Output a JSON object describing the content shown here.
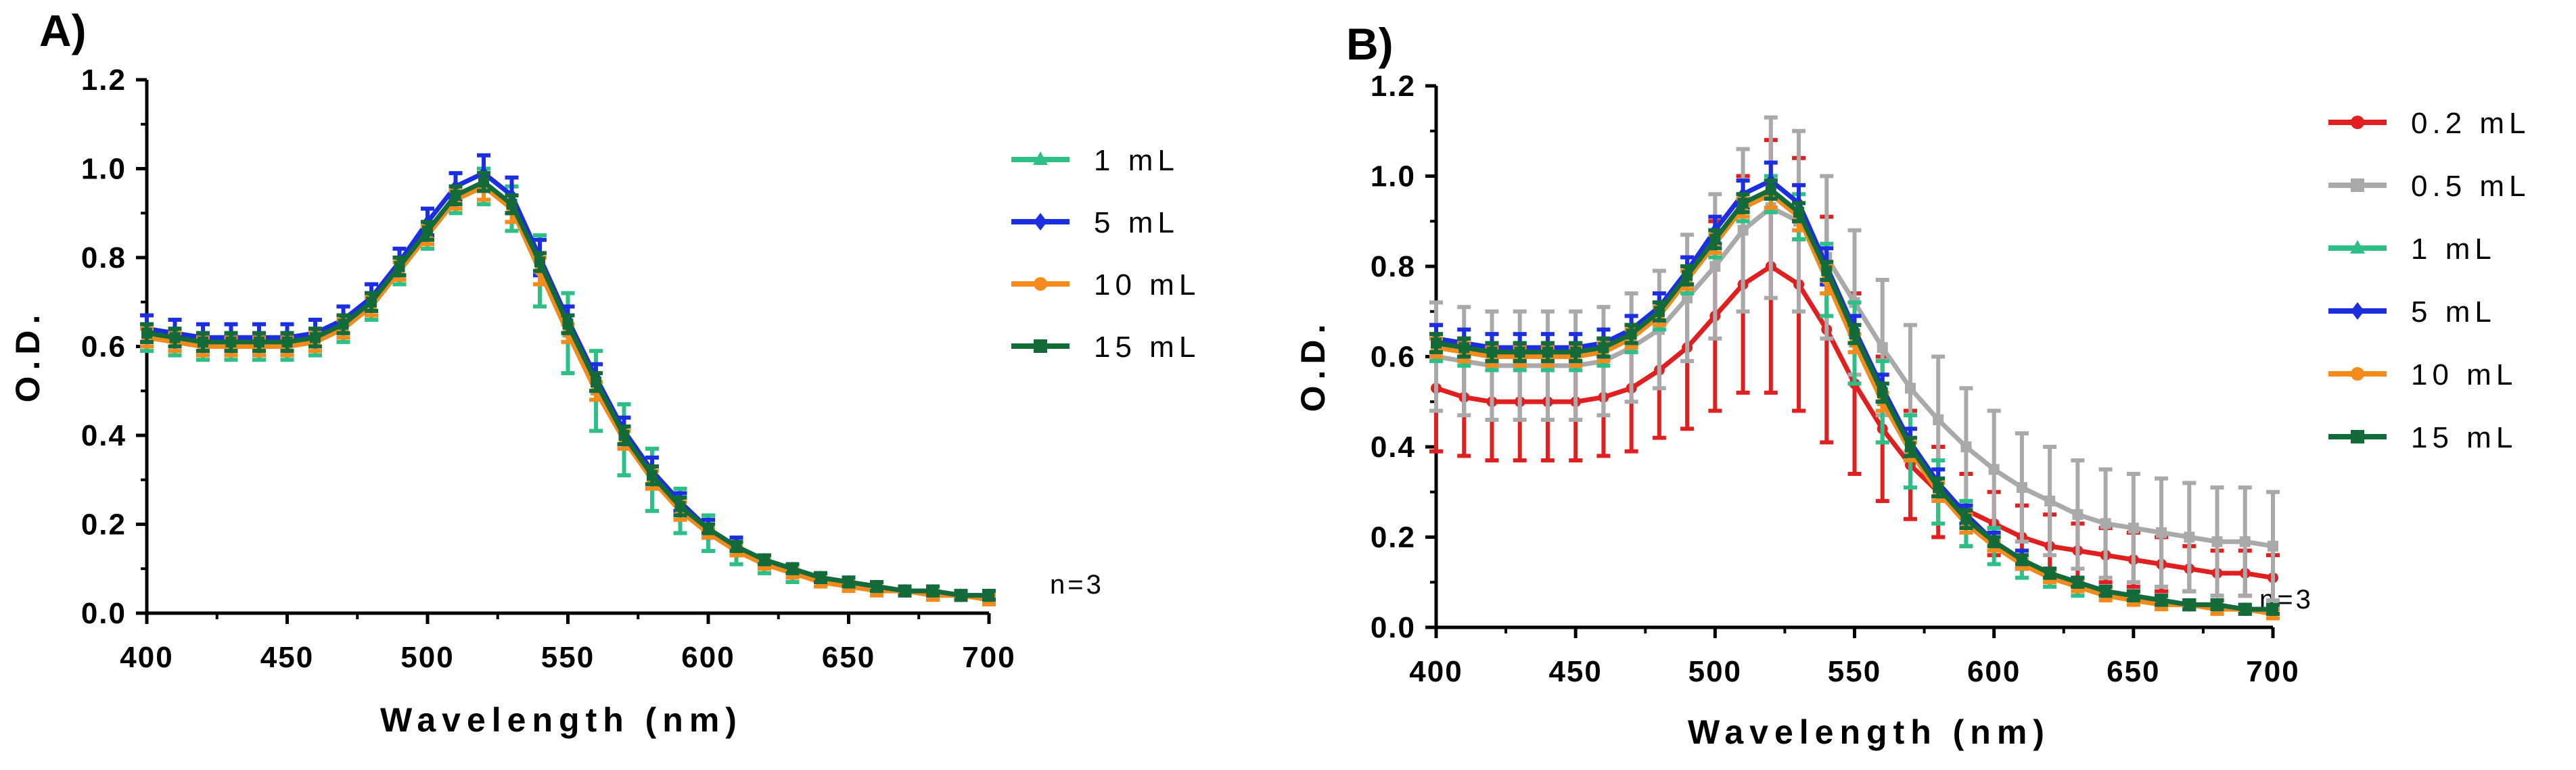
{
  "panels": [
    {
      "label": "A)",
      "note": "n=3",
      "chart_data": {
        "type": "line",
        "xlabel": "Wavelength (nm)",
        "ylabel": "O.D.",
        "xlim": [
          400,
          700
        ],
        "ylim": [
          0.0,
          1.2
        ],
        "xticks": [
          400,
          450,
          500,
          550,
          600,
          650,
          700
        ],
        "yticks": [
          0.0,
          0.2,
          0.4,
          0.6,
          0.8,
          1.0,
          1.2
        ],
        "ytick_labels": [
          "0.0",
          "0.2",
          "0.4",
          "0.6",
          "0.8",
          "1.0",
          "1.2"
        ],
        "legend_position": "right",
        "x": [
          400,
          410,
          420,
          430,
          440,
          450,
          460,
          470,
          480,
          490,
          500,
          510,
          520,
          530,
          540,
          550,
          560,
          570,
          580,
          590,
          600,
          610,
          620,
          630,
          640,
          650,
          660,
          670,
          680,
          690,
          700
        ],
        "series": [
          {
            "name": "1 mL",
            "color": "#2dbf86",
            "marker": "triangle",
            "values": [
              0.62,
              0.61,
              0.6,
              0.6,
              0.6,
              0.6,
              0.61,
              0.64,
              0.69,
              0.77,
              0.85,
              0.93,
              0.96,
              0.91,
              0.77,
              0.63,
              0.5,
              0.39,
              0.3,
              0.23,
              0.18,
              0.14,
              0.11,
              0.09,
              0.08,
              0.07,
              0.06,
              0.05,
              0.05,
              0.04,
              0.04
            ],
            "errors": [
              0.03,
              0.03,
              0.03,
              0.03,
              0.03,
              0.03,
              0.03,
              0.03,
              0.03,
              0.03,
              0.03,
              0.03,
              0.04,
              0.05,
              0.08,
              0.09,
              0.09,
              0.08,
              0.07,
              0.05,
              0.04,
              0.03,
              0.02,
              0.02,
              0.01,
              0.01,
              0.01,
              0.01,
              0.01,
              0.01,
              0.01
            ]
          },
          {
            "name": "5 mL",
            "color": "#1c2fe0",
            "marker": "diamond",
            "values": [
              0.64,
              0.63,
              0.62,
              0.62,
              0.62,
              0.62,
              0.63,
              0.66,
              0.71,
              0.79,
              0.88,
              0.96,
              0.99,
              0.94,
              0.8,
              0.66,
              0.53,
              0.41,
              0.32,
              0.25,
              0.19,
              0.15,
              0.12,
              0.1,
              0.08,
              0.07,
              0.06,
              0.05,
              0.05,
              0.04,
              0.04
            ],
            "errors": [
              0.03,
              0.03,
              0.03,
              0.03,
              0.03,
              0.03,
              0.03,
              0.03,
              0.03,
              0.03,
              0.03,
              0.03,
              0.04,
              0.04,
              0.04,
              0.03,
              0.03,
              0.03,
              0.03,
              0.02,
              0.02,
              0.02,
              0.01,
              0.01,
              0.01,
              0.01,
              0.01,
              0.01,
              0.01,
              0.01,
              0.01
            ]
          },
          {
            "name": "10 mL",
            "color": "#f28a1c",
            "marker": "circle",
            "values": [
              0.62,
              0.61,
              0.6,
              0.6,
              0.6,
              0.6,
              0.61,
              0.64,
              0.69,
              0.77,
              0.85,
              0.93,
              0.96,
              0.91,
              0.77,
              0.63,
              0.5,
              0.39,
              0.3,
              0.23,
              0.18,
              0.14,
              0.11,
              0.09,
              0.07,
              0.06,
              0.05,
              0.05,
              0.04,
              0.04,
              0.03
            ],
            "errors": [
              0.02,
              0.02,
              0.02,
              0.02,
              0.02,
              0.02,
              0.02,
              0.02,
              0.02,
              0.02,
              0.02,
              0.02,
              0.03,
              0.03,
              0.03,
              0.02,
              0.02,
              0.02,
              0.02,
              0.02,
              0.01,
              0.01,
              0.01,
              0.01,
              0.01,
              0.01,
              0.01,
              0.01,
              0.01,
              0.01,
              0.01
            ]
          },
          {
            "name": "15 mL",
            "color": "#146b3a",
            "marker": "square",
            "values": [
              0.63,
              0.62,
              0.61,
              0.61,
              0.61,
              0.61,
              0.62,
              0.65,
              0.7,
              0.78,
              0.86,
              0.94,
              0.97,
              0.92,
              0.79,
              0.65,
              0.52,
              0.4,
              0.31,
              0.24,
              0.19,
              0.15,
              0.12,
              0.1,
              0.08,
              0.07,
              0.06,
              0.05,
              0.05,
              0.04,
              0.04
            ],
            "errors": [
              0.02,
              0.02,
              0.02,
              0.02,
              0.02,
              0.02,
              0.02,
              0.02,
              0.02,
              0.02,
              0.02,
              0.02,
              0.02,
              0.02,
              0.02,
              0.02,
              0.02,
              0.02,
              0.02,
              0.02,
              0.01,
              0.01,
              0.01,
              0.01,
              0.01,
              0.01,
              0.01,
              0.01,
              0.01,
              0.01,
              0.01
            ]
          }
        ]
      }
    },
    {
      "label": "B)",
      "note": "n=3",
      "chart_data": {
        "type": "line",
        "xlabel": "Wavelength (nm)",
        "ylabel": "O.D.",
        "xlim": [
          400,
          700
        ],
        "ylim": [
          0.0,
          1.2
        ],
        "xticks": [
          400,
          450,
          500,
          550,
          600,
          650,
          700
        ],
        "yticks": [
          0.0,
          0.2,
          0.4,
          0.6,
          0.8,
          1.0,
          1.2
        ],
        "ytick_labels": [
          "0.0",
          "0.2",
          "0.4",
          "0.6",
          "0.8",
          "1.0",
          "1.2"
        ],
        "legend_position": "right",
        "x": [
          400,
          410,
          420,
          430,
          440,
          450,
          460,
          470,
          480,
          490,
          500,
          510,
          520,
          530,
          540,
          550,
          560,
          570,
          580,
          590,
          600,
          610,
          620,
          630,
          640,
          650,
          660,
          670,
          680,
          690,
          700
        ],
        "series": [
          {
            "name": "0.2 mL",
            "color": "#e02020",
            "marker": "circle",
            "values": [
              0.53,
              0.51,
              0.5,
              0.5,
              0.5,
              0.5,
              0.51,
              0.53,
              0.57,
              0.62,
              0.69,
              0.76,
              0.8,
              0.76,
              0.66,
              0.54,
              0.44,
              0.36,
              0.3,
              0.26,
              0.23,
              0.2,
              0.18,
              0.17,
              0.16,
              0.15,
              0.14,
              0.13,
              0.12,
              0.12,
              0.11
            ],
            "errors": [
              0.14,
              0.13,
              0.13,
              0.13,
              0.13,
              0.13,
              0.13,
              0.14,
              0.15,
              0.18,
              0.21,
              0.24,
              0.28,
              0.28,
              0.25,
              0.2,
              0.16,
              0.12,
              0.1,
              0.08,
              0.07,
              0.07,
              0.07,
              0.06,
              0.06,
              0.06,
              0.06,
              0.05,
              0.05,
              0.05,
              0.05
            ]
          },
          {
            "name": "0.5 mL",
            "color": "#a9a9a9",
            "marker": "square",
            "values": [
              0.6,
              0.59,
              0.58,
              0.58,
              0.58,
              0.58,
              0.59,
              0.62,
              0.66,
              0.73,
              0.8,
              0.88,
              0.93,
              0.9,
              0.82,
              0.72,
              0.62,
              0.53,
              0.46,
              0.4,
              0.35,
              0.31,
              0.28,
              0.25,
              0.23,
              0.22,
              0.21,
              0.2,
              0.19,
              0.19,
              0.18
            ],
            "errors": [
              0.12,
              0.12,
              0.12,
              0.12,
              0.12,
              0.12,
              0.12,
              0.12,
              0.13,
              0.14,
              0.16,
              0.18,
              0.2,
              0.2,
              0.18,
              0.16,
              0.15,
              0.14,
              0.14,
              0.13,
              0.13,
              0.12,
              0.12,
              0.12,
              0.12,
              0.12,
              0.12,
              0.12,
              0.12,
              0.12,
              0.12
            ]
          },
          {
            "name": "1 mL",
            "color": "#2dbf86",
            "marker": "triangle",
            "values": [
              0.62,
              0.61,
              0.6,
              0.6,
              0.6,
              0.6,
              0.61,
              0.64,
              0.69,
              0.77,
              0.85,
              0.93,
              0.96,
              0.91,
              0.77,
              0.63,
              0.5,
              0.39,
              0.3,
              0.23,
              0.18,
              0.14,
              0.11,
              0.09,
              0.08,
              0.07,
              0.06,
              0.05,
              0.05,
              0.04,
              0.04
            ],
            "errors": [
              0.03,
              0.03,
              0.03,
              0.03,
              0.03,
              0.03,
              0.03,
              0.03,
              0.03,
              0.03,
              0.03,
              0.03,
              0.04,
              0.05,
              0.08,
              0.09,
              0.09,
              0.08,
              0.07,
              0.05,
              0.04,
              0.03,
              0.02,
              0.02,
              0.01,
              0.01,
              0.01,
              0.01,
              0.01,
              0.01,
              0.01
            ]
          },
          {
            "name": "5 mL",
            "color": "#1c2fe0",
            "marker": "diamond",
            "values": [
              0.64,
              0.63,
              0.62,
              0.62,
              0.62,
              0.62,
              0.63,
              0.66,
              0.71,
              0.79,
              0.88,
              0.96,
              0.99,
              0.94,
              0.8,
              0.66,
              0.53,
              0.41,
              0.32,
              0.25,
              0.19,
              0.15,
              0.12,
              0.1,
              0.08,
              0.07,
              0.06,
              0.05,
              0.05,
              0.04,
              0.04
            ],
            "errors": [
              0.03,
              0.03,
              0.03,
              0.03,
              0.03,
              0.03,
              0.03,
              0.03,
              0.03,
              0.03,
              0.03,
              0.03,
              0.04,
              0.04,
              0.04,
              0.03,
              0.03,
              0.03,
              0.03,
              0.02,
              0.02,
              0.02,
              0.01,
              0.01,
              0.01,
              0.01,
              0.01,
              0.01,
              0.01,
              0.01,
              0.01
            ]
          },
          {
            "name": "10 mL",
            "color": "#f28a1c",
            "marker": "circle",
            "values": [
              0.62,
              0.61,
              0.6,
              0.6,
              0.6,
              0.6,
              0.61,
              0.64,
              0.69,
              0.77,
              0.85,
              0.93,
              0.96,
              0.91,
              0.77,
              0.63,
              0.5,
              0.39,
              0.3,
              0.23,
              0.18,
              0.14,
              0.11,
              0.09,
              0.07,
              0.06,
              0.05,
              0.05,
              0.04,
              0.04,
              0.03
            ],
            "errors": [
              0.02,
              0.02,
              0.02,
              0.02,
              0.02,
              0.02,
              0.02,
              0.02,
              0.02,
              0.02,
              0.02,
              0.02,
              0.03,
              0.03,
              0.03,
              0.02,
              0.02,
              0.02,
              0.02,
              0.02,
              0.01,
              0.01,
              0.01,
              0.01,
              0.01,
              0.01,
              0.01,
              0.01,
              0.01,
              0.01,
              0.01
            ]
          },
          {
            "name": "15 mL",
            "color": "#146b3a",
            "marker": "square",
            "values": [
              0.63,
              0.62,
              0.61,
              0.61,
              0.61,
              0.61,
              0.62,
              0.65,
              0.7,
              0.78,
              0.86,
              0.94,
              0.97,
              0.92,
              0.79,
              0.65,
              0.52,
              0.4,
              0.31,
              0.24,
              0.19,
              0.15,
              0.12,
              0.1,
              0.08,
              0.07,
              0.06,
              0.05,
              0.05,
              0.04,
              0.04
            ],
            "errors": [
              0.02,
              0.02,
              0.02,
              0.02,
              0.02,
              0.02,
              0.02,
              0.02,
              0.02,
              0.02,
              0.02,
              0.02,
              0.02,
              0.02,
              0.02,
              0.02,
              0.02,
              0.02,
              0.02,
              0.02,
              0.01,
              0.01,
              0.01,
              0.01,
              0.01,
              0.01,
              0.01,
              0.01,
              0.01,
              0.01,
              0.01
            ]
          }
        ]
      }
    }
  ]
}
